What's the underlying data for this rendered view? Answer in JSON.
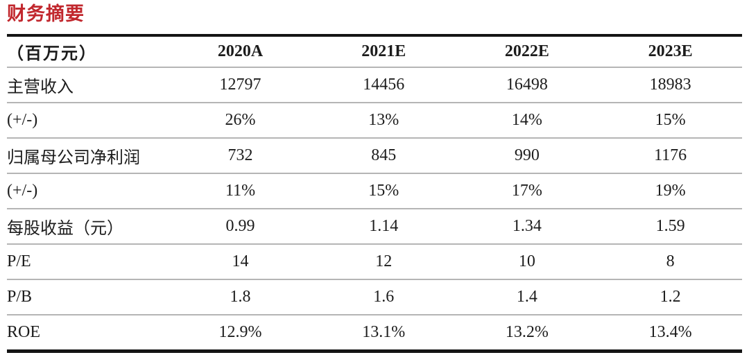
{
  "title": "财务摘要",
  "colors": {
    "title_red": "#c1272d",
    "text": "#1c1c1c",
    "thick_rule": "#141414",
    "thin_rule": "#b5b5b5"
  },
  "table": {
    "unit_header": "（百万元）",
    "columns": [
      "2020A",
      "2021E",
      "2022E",
      "2023E"
    ],
    "rows": [
      {
        "label": "主营收入",
        "values": [
          "12797",
          "14456",
          "16498",
          "18983"
        ]
      },
      {
        "label": "(+/-)",
        "values": [
          "26%",
          "13%",
          "14%",
          "15%"
        ]
      },
      {
        "label": "归属母公司净利润",
        "values": [
          "732",
          "845",
          "990",
          "1176"
        ]
      },
      {
        "label": "(+/-)",
        "values": [
          "11%",
          "15%",
          "17%",
          "19%"
        ]
      },
      {
        "label": "每股收益（元）",
        "values": [
          "0.99",
          "1.14",
          "1.34",
          "1.59"
        ]
      },
      {
        "label": "P/E",
        "values": [
          "14",
          "12",
          "10",
          "8"
        ]
      },
      {
        "label": "P/B",
        "values": [
          "1.8",
          "1.6",
          "1.4",
          "1.2"
        ]
      },
      {
        "label": "ROE",
        "values": [
          "12.9%",
          "13.1%",
          "13.2%",
          "13.4%"
        ]
      }
    ]
  }
}
